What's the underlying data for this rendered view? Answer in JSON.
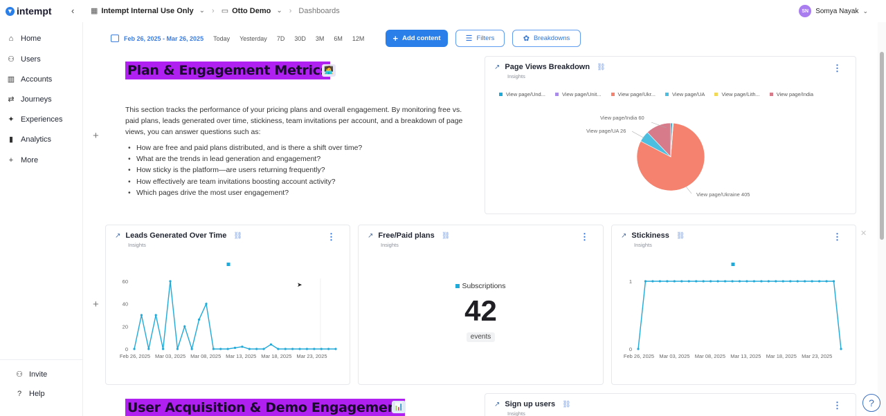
{
  "app": {
    "brand": "intempt",
    "collapse_icon": "chevron-left-icon"
  },
  "breadcrumb": {
    "workspace": "Intempt Internal Use Only",
    "project": "Otto Demo",
    "page": "Dashboards"
  },
  "user": {
    "initials": "SN",
    "name": "Somya Nayak"
  },
  "sidebar": {
    "items": [
      {
        "label": "Home",
        "icon": "home-icon"
      },
      {
        "label": "Users",
        "icon": "users-icon"
      },
      {
        "label": "Accounts",
        "icon": "accounts-icon"
      },
      {
        "label": "Journeys",
        "icon": "journeys-icon"
      },
      {
        "label": "Experiences",
        "icon": "experiences-icon"
      },
      {
        "label": "Analytics",
        "icon": "analytics-icon"
      },
      {
        "label": "More",
        "icon": "plus-icon"
      }
    ],
    "footer": [
      {
        "label": "Invite",
        "icon": "invite-icon"
      },
      {
        "label": "Help",
        "icon": "help-icon"
      }
    ]
  },
  "toolbar": {
    "date_range": "Feb 26, 2025 - Mar 26, 2025",
    "presets": [
      "Today",
      "Yesterday",
      "7D",
      "30D",
      "3M",
      "6M",
      "12M"
    ],
    "add_content": "Add content",
    "filters": "Filters",
    "breakdowns": "Breakdowns"
  },
  "section1": {
    "title": "Plan & Engagement Metrics",
    "emoji": "🧑‍💻",
    "description": "This section tracks the performance of your pricing plans and overall engagement. By monitoring free vs. paid plans, leads generated over time, stickiness, team invitations per account, and a breakdown of page views, you can answer questions such as:",
    "bullets": [
      "How are free and paid plans distributed, and is there a shift over time?",
      "What are the trends in lead generation and engagement?",
      "How sticky is the platform—are users returning frequently?",
      "How effectively are team invitations boosting account activity?",
      "Which pages drive the most user engagement?"
    ]
  },
  "section2": {
    "title": "User Acquisition & Demo Engagement",
    "emoji": "📊"
  },
  "cards": {
    "page_views": {
      "title": "Page Views Breakdown",
      "subtitle": "Insights",
      "legend": [
        {
          "label": "View page/Und...",
          "color": "#1fa9d6"
        },
        {
          "label": "View page/Unit...",
          "color": "#a98be8"
        },
        {
          "label": "View page/Ukr...",
          "color": "#f4826e"
        },
        {
          "label": "View page/UA",
          "color": "#4cbfe0"
        },
        {
          "label": "View page/Lith...",
          "color": "#f0d95a"
        },
        {
          "label": "View page/India",
          "color": "#d77a8a"
        }
      ],
      "slice_labels": [
        "View page/India 60",
        "View page/UA 26",
        "View page/Ukraine 405"
      ]
    },
    "leads": {
      "title": "Leads Generated Over Time",
      "subtitle": "Insights"
    },
    "free_paid": {
      "title": "Free/Paid plans",
      "subtitle": "Insights",
      "legend_label": "Subscriptions",
      "value": "42",
      "unit": "events"
    },
    "stickiness": {
      "title": "Stickiness",
      "subtitle": "Insights"
    },
    "signup": {
      "title": "Sign up users",
      "subtitle": "Insights"
    }
  },
  "chart_data": [
    {
      "type": "pie",
      "title": "Page Views Breakdown",
      "slices": [
        {
          "name": "View page/Ukraine",
          "value": 405,
          "color": "#f4826e"
        },
        {
          "name": "View page/India",
          "value": 60,
          "color": "#d77a8a"
        },
        {
          "name": "View page/UA",
          "value": 26,
          "color": "#4cbfe0"
        },
        {
          "name": "View page/Und...",
          "value": 4,
          "color": "#1fa9d6"
        },
        {
          "name": "View page/Unit...",
          "value": 1,
          "color": "#a98be8"
        },
        {
          "name": "View page/Lith...",
          "value": 1,
          "color": "#f0d95a"
        }
      ]
    },
    {
      "type": "line",
      "title": "Leads Generated Over Time",
      "x_ticks": [
        "Feb 26, 2025",
        "Mar 03, 2025",
        "Mar 08, 2025",
        "Mar 13, 2025",
        "Mar 18, 2025",
        "Mar 23, 2025"
      ],
      "y_ticks": [
        0,
        20,
        40,
        60
      ],
      "ylim": [
        0,
        60
      ],
      "color": "#21a9d8",
      "values": [
        0,
        30,
        0,
        30,
        0,
        60,
        0,
        20,
        0,
        26,
        40,
        0,
        0,
        0,
        1,
        2,
        0,
        0,
        0,
        4,
        0,
        0,
        0,
        0,
        0,
        0,
        0,
        0,
        0
      ]
    },
    {
      "type": "line",
      "title": "Stickiness",
      "x_ticks": [
        "Feb 26, 2025",
        "Mar 03, 2025",
        "Mar 08, 2025",
        "Mar 13, 2025",
        "Mar 18, 2025",
        "Mar 23, 2025"
      ],
      "y_ticks": [
        0,
        1
      ],
      "ylim": [
        0,
        1
      ],
      "color": "#21a9d8",
      "values": [
        0,
        1,
        1,
        1,
        1,
        1,
        1,
        1,
        1,
        1,
        1,
        1,
        1,
        1,
        1,
        1,
        1,
        1,
        1,
        1,
        1,
        1,
        1,
        1,
        1,
        1,
        1,
        1,
        0
      ]
    }
  ]
}
